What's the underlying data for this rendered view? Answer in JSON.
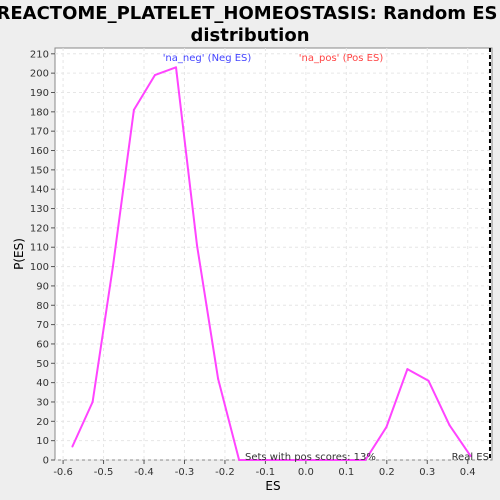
{
  "chart_data": {
    "type": "line",
    "title_line1": "REACTOME_PLATELET_HOMEOSTASIS: Random ES",
    "title_line2": "distribution",
    "xlabel": "ES",
    "ylabel": "P(ES)",
    "xlim": [
      -0.62,
      0.46
    ],
    "ylim": [
      0,
      213
    ],
    "x_ticks": [
      -0.6,
      -0.5,
      -0.4,
      -0.3,
      -0.2,
      -0.1,
      0.0,
      0.1,
      0.2,
      0.3,
      0.4
    ],
    "x_tick_labels": [
      "-0.6",
      "-0.5",
      "-0.4",
      "-0.3",
      "-0.2",
      "-0.1",
      "0.0",
      "0.1",
      "0.2",
      "0.3",
      "0.4"
    ],
    "y_ticks": [
      0,
      10,
      20,
      30,
      40,
      50,
      60,
      70,
      80,
      90,
      100,
      110,
      120,
      130,
      140,
      150,
      160,
      170,
      180,
      190,
      200,
      210
    ],
    "grid": true,
    "series": [
      {
        "color": "#ff44ff",
        "x": [
          -0.577,
          -0.527,
          -0.477,
          -0.425,
          -0.373,
          -0.321,
          -0.269,
          -0.217,
          -0.165,
          -0.113,
          -0.061,
          -0.009,
          0.043,
          0.095,
          0.147,
          0.199,
          0.251,
          0.303,
          0.355,
          0.407
        ],
        "y": [
          7,
          30,
          100,
          181,
          199,
          203,
          111,
          42,
          0,
          0,
          0,
          0,
          0,
          0,
          0,
          17,
          47,
          41,
          18,
          2
        ]
      }
    ],
    "annotations": {
      "neg_label": "'na_neg' (Neg ES)",
      "neg_color": "#4444ff",
      "pos_label": "'na_pos' (Pos ES)",
      "pos_color": "#ff4444",
      "sets_text": "Sets with pos scores: 13%",
      "real_es_label": "Real ES",
      "real_es_value": 0.455
    }
  }
}
